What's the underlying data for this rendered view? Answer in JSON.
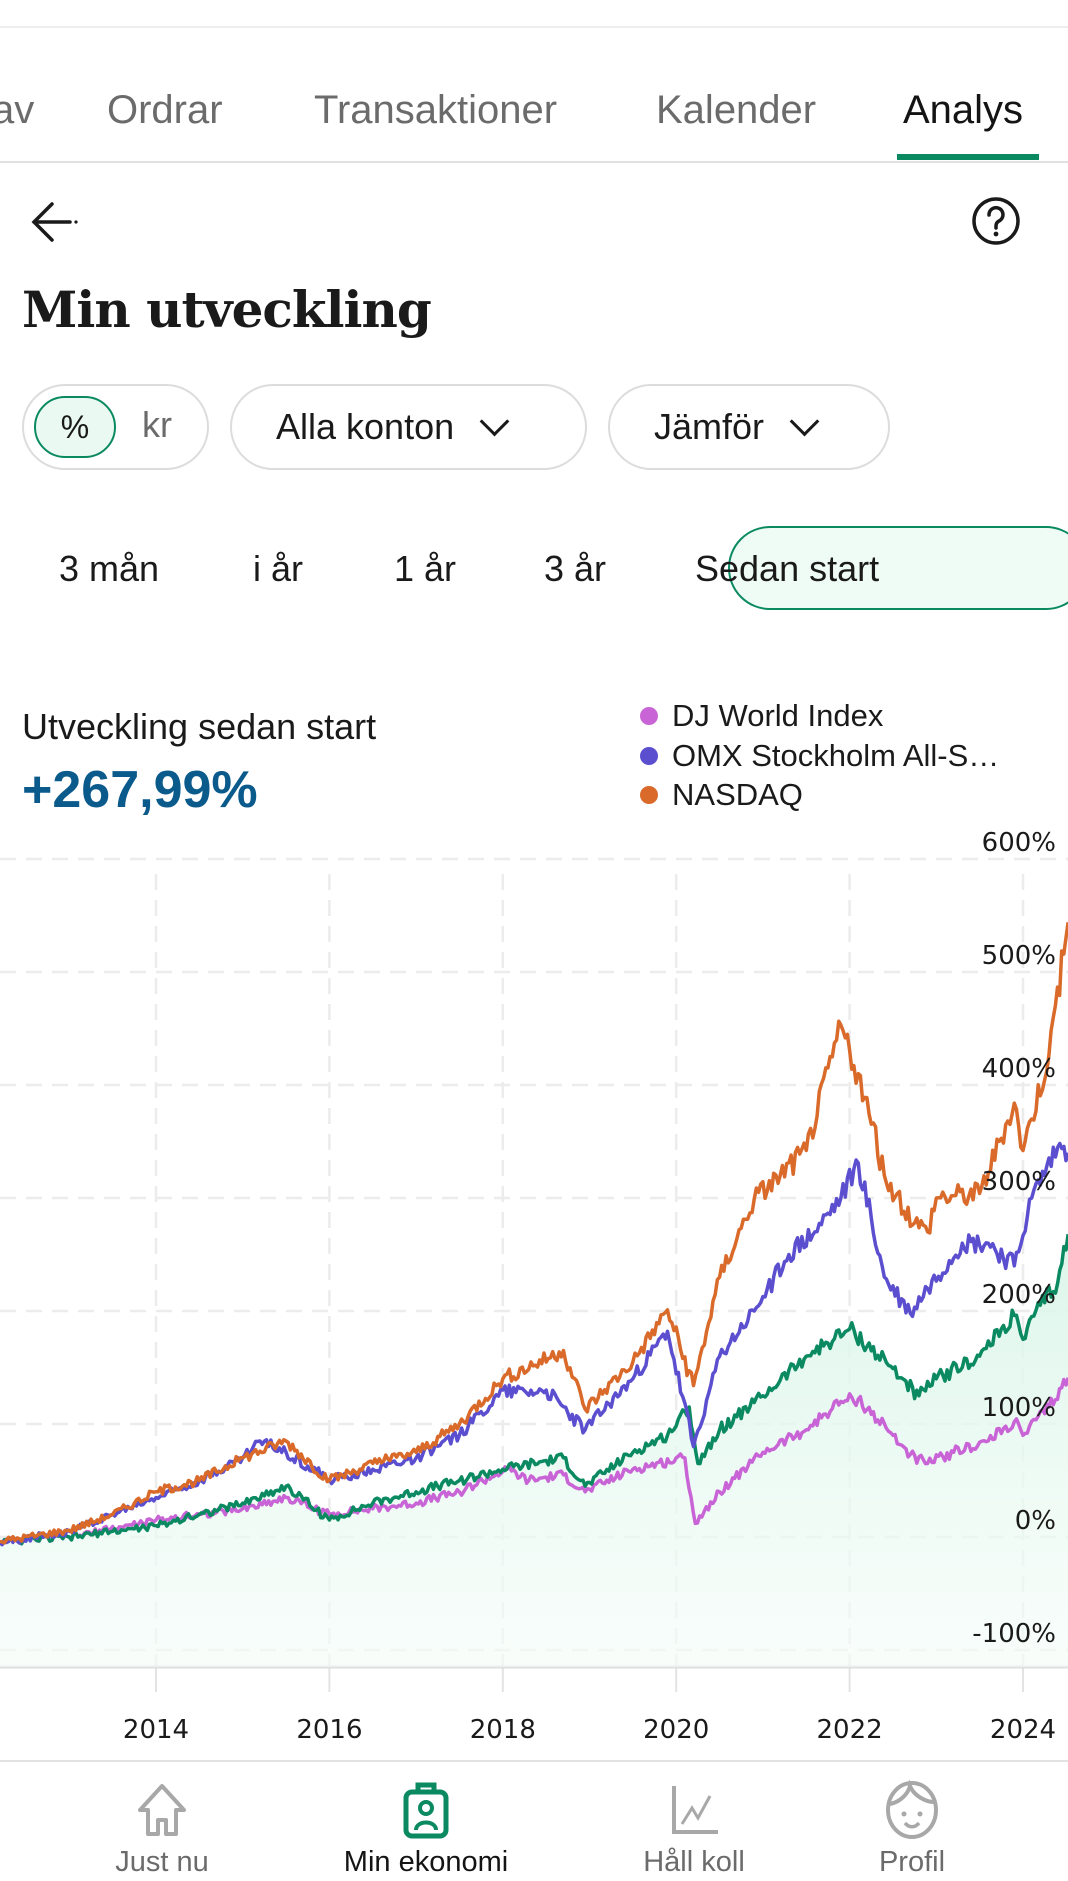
{
  "tabs": [
    {
      "label": "av",
      "active": false
    },
    {
      "label": "Ordrar",
      "active": false
    },
    {
      "label": "Transaktioner",
      "active": false
    },
    {
      "label": "Kalender",
      "active": false
    },
    {
      "label": "Analys",
      "active": true
    }
  ],
  "header": {
    "back_icon": "arrow-left-icon",
    "help_icon": "help-circle-icon",
    "title": "Min utveckling"
  },
  "filters": {
    "unit_toggle": {
      "options": [
        "%",
        "kr"
      ],
      "selected": "%"
    },
    "accounts": "Alla konton",
    "compare": "Jämför"
  },
  "periods": {
    "options": [
      "3 mån",
      "i år",
      "1 år",
      "3 år",
      "Sedan start"
    ],
    "selected": "Sedan start"
  },
  "performance": {
    "label": "Utveckling sedan start",
    "value": "+267,99%"
  },
  "legend": [
    {
      "label": "DJ World Index",
      "color": "#c964d6"
    },
    {
      "label": "OMX Stockholm All-S…",
      "color": "#5b4fd0"
    },
    {
      "label": "NASDAQ",
      "color": "#d96a2a"
    }
  ],
  "chart_data": {
    "type": "line",
    "title": "Utveckling sedan start",
    "xlabel": "",
    "ylabel": "",
    "xlim": [
      2012.2,
      2024.52
    ],
    "ylim": [
      -100,
      600
    ],
    "x_ticks": [
      "2014",
      "2016",
      "2018",
      "2020",
      "2022",
      "2024"
    ],
    "y_ticks": [
      "600%",
      "500%",
      "400%",
      "300%",
      "200%",
      "100%",
      "0%",
      "-100%"
    ],
    "grid": true,
    "legend_position": "top-right",
    "series": [
      {
        "name": "Min utveckling",
        "color": "#0b8a62",
        "fill": true,
        "x": [
          2012.2,
          2013,
          2013.5,
          2014,
          2014.5,
          2015,
          2015.5,
          2016,
          2016.5,
          2017,
          2017.5,
          2018,
          2018.7,
          2018.95,
          2019.5,
          2019.9,
          2020.15,
          2020.25,
          2020.5,
          2021,
          2021.5,
          2022.0,
          2022.5,
          2022.8,
          2023.0,
          2023.5,
          2023.9,
          2024.0,
          2024.2,
          2024.4,
          2024.52
        ],
        "y": [
          -5,
          0,
          5,
          10,
          20,
          30,
          45,
          15,
          30,
          40,
          50,
          60,
          70,
          45,
          75,
          90,
          115,
          65,
          95,
          125,
          160,
          184,
          149,
          125,
          140,
          160,
          196,
          175,
          205,
          225,
          268
        ]
      },
      {
        "name": "DJ World Index",
        "color": "#c964d6",
        "x": [
          2012.2,
          2013,
          2014,
          2014.5,
          2015,
          2015.5,
          2016,
          2016.5,
          2017,
          2017.5,
          2018.05,
          2018.3,
          2018.7,
          2018.95,
          2019.5,
          2020.1,
          2020.22,
          2020.5,
          2021,
          2021.5,
          2021.9,
          2022.1,
          2022.5,
          2022.7,
          2022.9,
          2023.2,
          2023.6,
          2023.9,
          2024.0,
          2024.3,
          2024.52
        ],
        "y": [
          -5,
          0,
          15,
          20,
          25,
          35,
          20,
          25,
          30,
          40,
          60,
          50,
          55,
          40,
          60,
          70,
          12,
          40,
          75,
          95,
          120,
          122,
          90,
          73,
          65,
          75,
          85,
          102,
          90,
          115,
          141
        ]
      },
      {
        "name": "OMX Stockholm All-Share",
        "color": "#5b4fd0",
        "x": [
          2012.2,
          2013,
          2013.5,
          2014,
          2014.5,
          2015,
          2015.2,
          2015.5,
          2016,
          2016.5,
          2017,
          2017.5,
          2018,
          2018.5,
          2018.95,
          2019.5,
          2019.9,
          2020.2,
          2020.5,
          2020.9,
          2021.3,
          2021.6,
          2021.9,
          2022.1,
          2022.4,
          2022.7,
          2022.9,
          2023.3,
          2023.6,
          2023.9,
          2024.1,
          2024.4,
          2024.52
        ],
        "y": [
          -5,
          5,
          20,
          35,
          50,
          70,
          85,
          75,
          50,
          60,
          70,
          90,
          130,
          130,
          95,
          140,
          182,
          80,
          160,
          200,
          250,
          270,
          300,
          331,
          230,
          198,
          220,
          260,
          260,
          240,
          300,
          345,
          340
        ]
      },
      {
        "name": "NASDAQ",
        "color": "#d96a2a",
        "x": [
          2012.2,
          2013,
          2013.5,
          2014,
          2014.5,
          2015,
          2015.5,
          2016,
          2016.5,
          2017,
          2017.5,
          2018,
          2018.7,
          2018.95,
          2019.5,
          2019.9,
          2020.2,
          2020.5,
          2020.9,
          2021.2,
          2021.5,
          2021.9,
          2022.1,
          2022.4,
          2022.75,
          2022.9,
          2023.0,
          2023.5,
          2023.9,
          2024.0,
          2024.3,
          2024.52
        ],
        "y": [
          -4,
          6,
          20,
          40,
          50,
          70,
          85,
          50,
          65,
          75,
          100,
          140,
          165,
          113,
          155,
          201,
          134,
          230,
          299,
          320,
          342,
          453,
          410,
          320,
          278,
          270,
          300,
          304,
          384,
          342,
          427,
          544
        ]
      }
    ]
  },
  "bottom_nav": [
    {
      "label": "Just nu",
      "icon": "home-icon",
      "active": false
    },
    {
      "label": "Min ekonomi",
      "icon": "wallet-person-icon",
      "active": true
    },
    {
      "label": "Håll koll",
      "icon": "chart-line-icon",
      "active": false
    },
    {
      "label": "Profil",
      "icon": "face-icon",
      "active": false
    }
  ]
}
